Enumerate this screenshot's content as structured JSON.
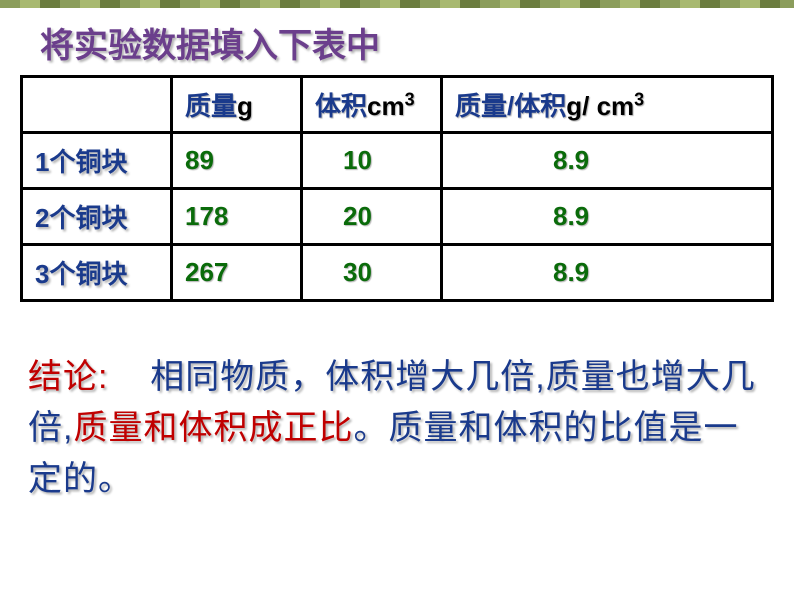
{
  "title": "将实验数据填入下表中",
  "table": {
    "headers": {
      "mass_label": "质量",
      "mass_unit": "g",
      "volume_label": "体积",
      "volume_unit_base": "cm",
      "volume_unit_sup": "3",
      "ratio_label": "质量/体积",
      "ratio_unit_base": "g/ cm",
      "ratio_unit_sup": "3"
    },
    "rows": [
      {
        "label_num": "1",
        "label_text": "个铜块",
        "mass": "89",
        "volume": "10",
        "ratio": "8.9"
      },
      {
        "label_num": "2",
        "label_text": "个铜块",
        "mass": "178",
        "volume": "20",
        "ratio": "8.9"
      },
      {
        "label_num": "3",
        "label_text": "个铜块",
        "mass": "267",
        "volume": "30",
        "ratio": "8.9"
      }
    ]
  },
  "conclusion": {
    "label": "结论:",
    "part1": "相同物质，体积增大几倍",
    "part2": ",",
    "part3": "质量也增大几倍",
    "part4": ",",
    "part5": "质量和体积成正比",
    "part6": "。质量和体积的比值是一定的。"
  },
  "colors": {
    "title_purple": "#6b3f8c",
    "header_blue": "#1a3a8c",
    "data_green": "#0a6b0a",
    "red": "#c00000",
    "blue": "#1a3a8c"
  }
}
